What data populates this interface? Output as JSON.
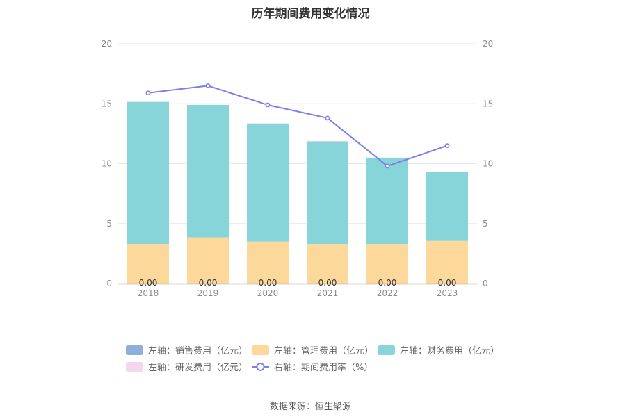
{
  "title": "历年期间费用变化情况",
  "source": "数据来源：恒生聚源",
  "chart_data": {
    "type": "bar",
    "title": "历年期间费用变化情况",
    "categories": [
      "2018",
      "2019",
      "2020",
      "2021",
      "2022",
      "2023"
    ],
    "stacked": true,
    "ylim_left": [
      0,
      20
    ],
    "ylim_right": [
      0,
      20
    ],
    "yticks_left": [
      "0",
      "5",
      "10",
      "15",
      "20"
    ],
    "yticks_right": [
      "0",
      "5",
      "10",
      "15",
      "20"
    ],
    "grid": true,
    "legend_position": "bottom",
    "series": [
      {
        "name": "左轴：销售费用（亿元）",
        "axis": "left",
        "type": "bar",
        "color": "#8eaedb",
        "values": [
          0.0,
          0.0,
          0.0,
          0.0,
          0.0,
          0.0
        ],
        "labels": [
          "0.00",
          "0.00",
          "0.00",
          "0.00",
          "0.00",
          "0.00"
        ]
      },
      {
        "name": "左轴：管理费用（亿元）",
        "axis": "left",
        "type": "bar",
        "color": "#fdd89b",
        "values": [
          3.3,
          3.85,
          3.5,
          3.3,
          3.3,
          3.55
        ]
      },
      {
        "name": "左轴：财务费用（亿元）",
        "axis": "left",
        "type": "bar",
        "color": "#87d5d9",
        "values": [
          11.85,
          11.05,
          9.85,
          8.55,
          7.2,
          5.75
        ]
      },
      {
        "name": "左轴：研发费用（亿元）",
        "axis": "left",
        "type": "bar",
        "color": "#f2d7ed",
        "values": [
          0.0,
          0.0,
          0.0,
          0.05,
          0.0,
          0.0
        ]
      },
      {
        "name": "右轴：期间费用率（%）",
        "axis": "right",
        "type": "line",
        "color": "#7b7fea",
        "values": [
          15.9,
          16.5,
          14.9,
          13.8,
          9.8,
          11.5
        ]
      }
    ]
  }
}
